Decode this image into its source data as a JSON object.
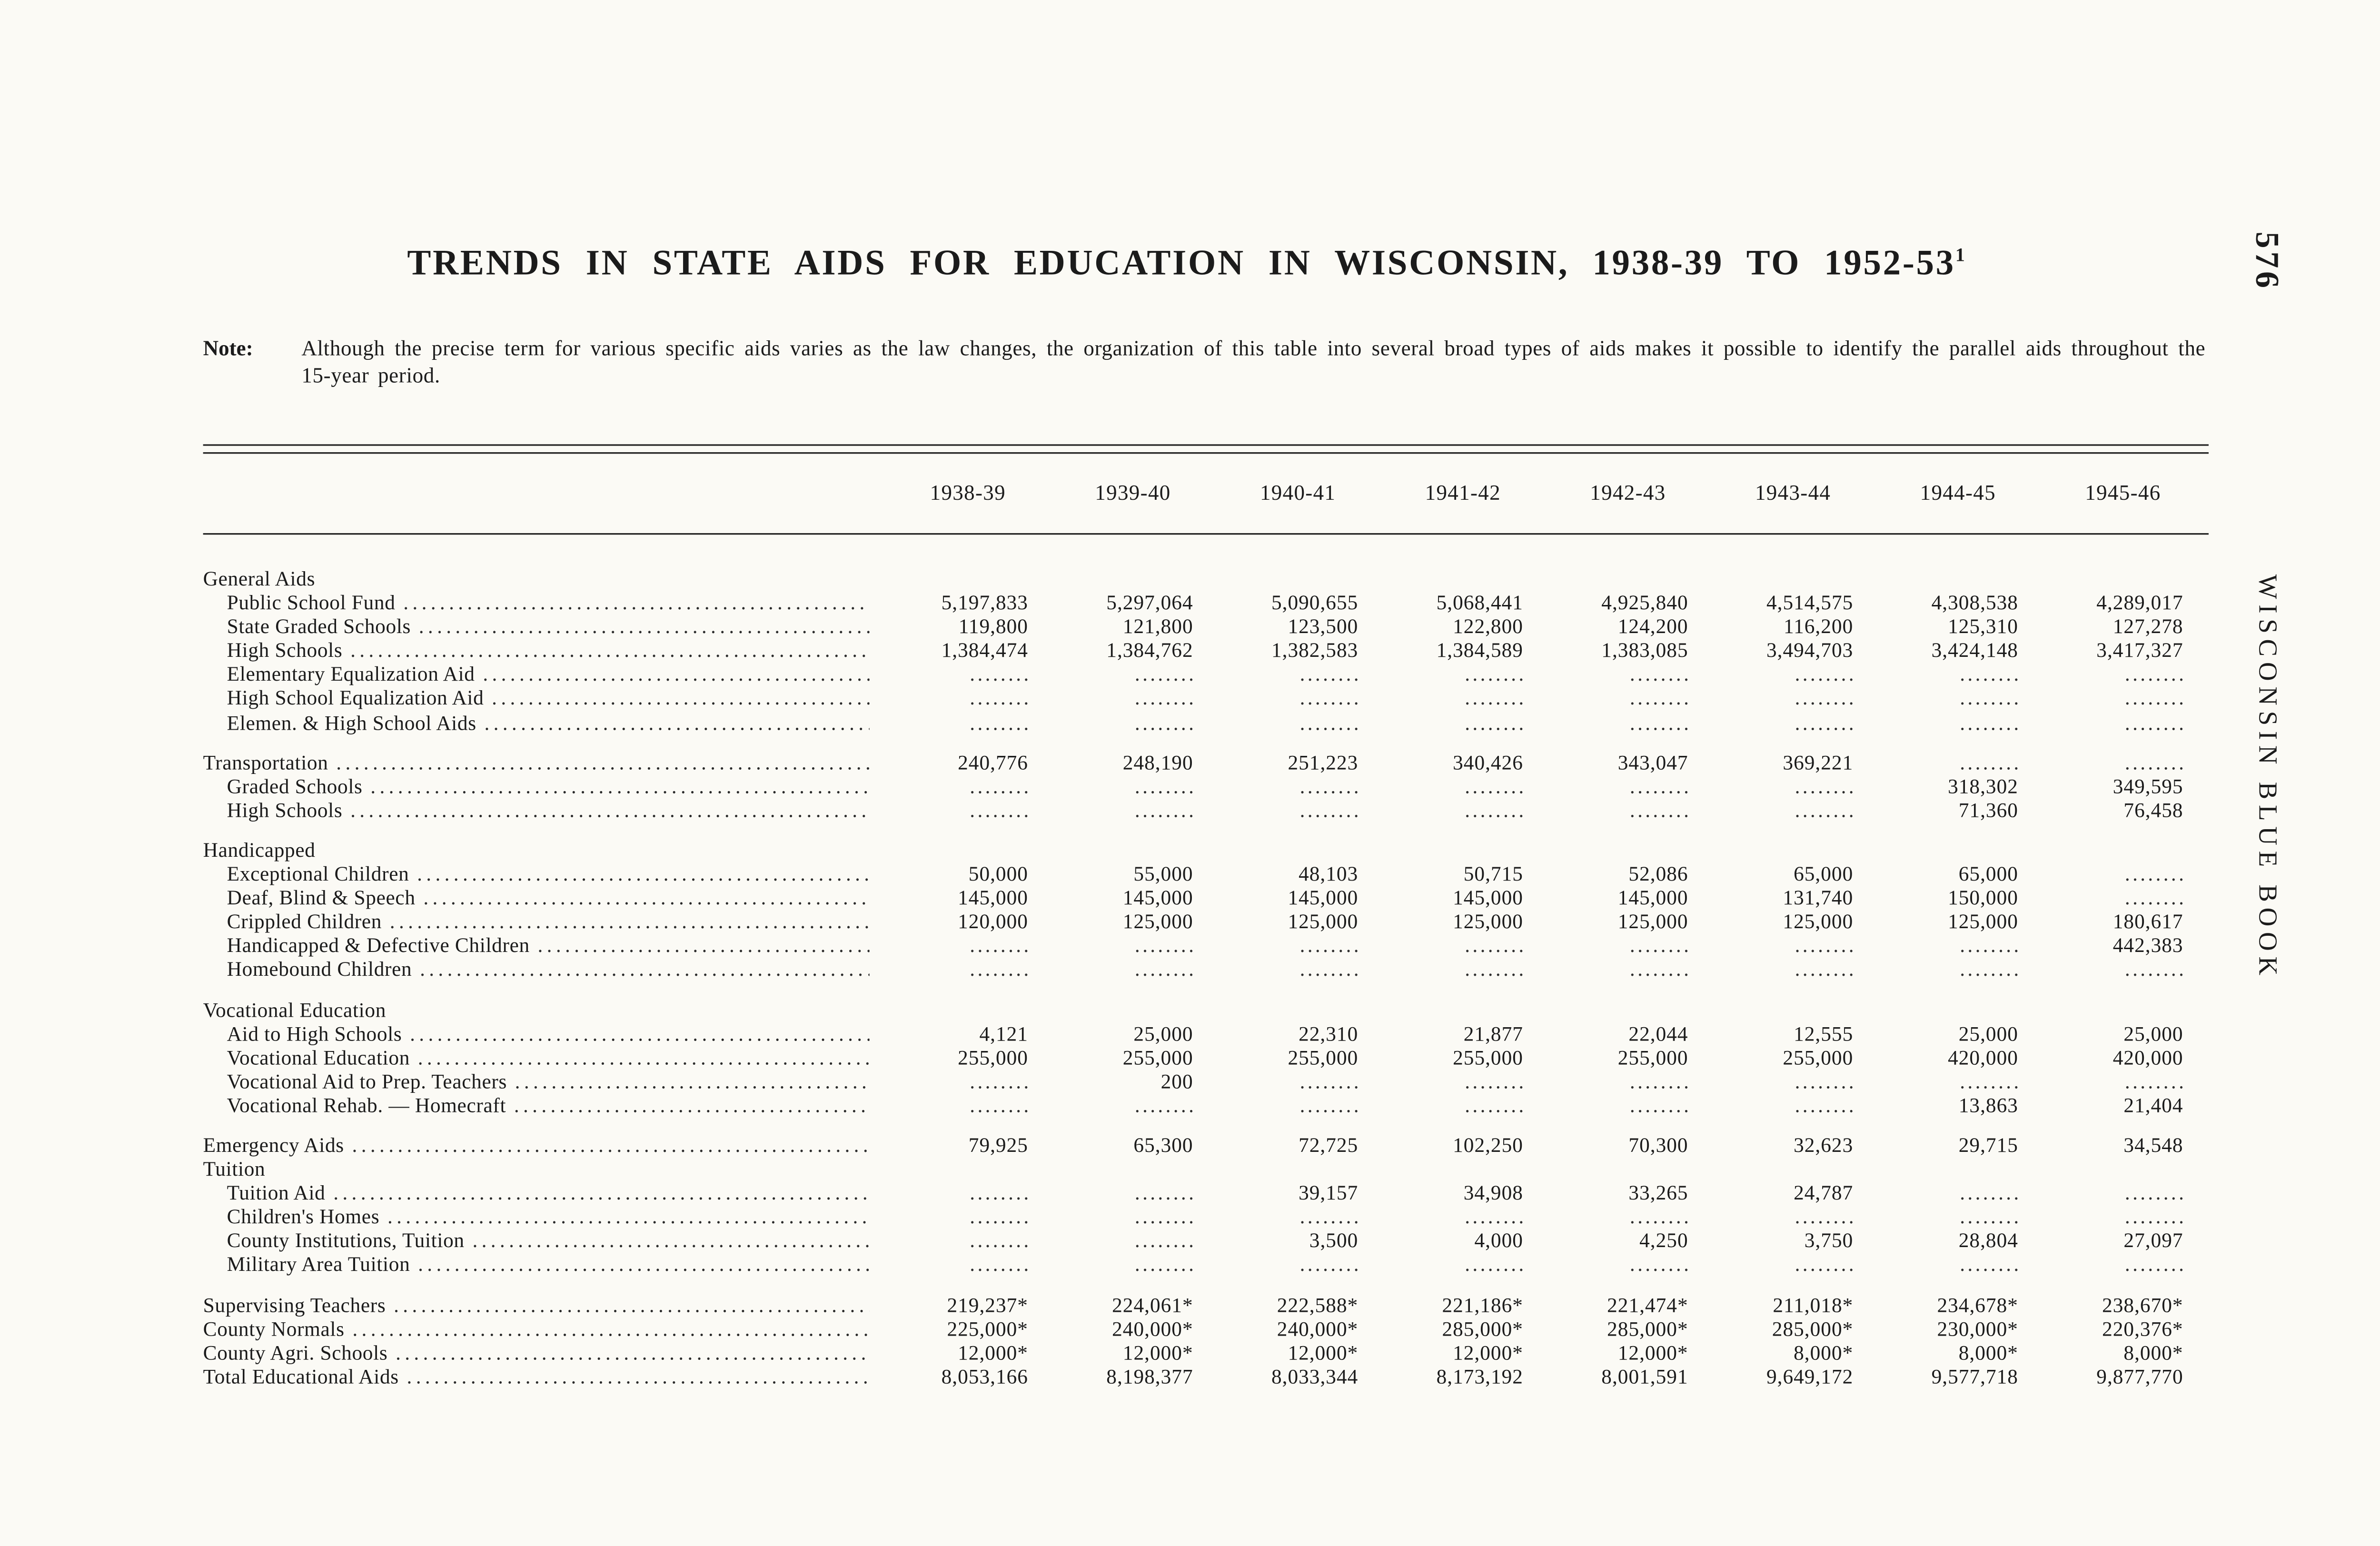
{
  "page": {
    "title": "TRENDS IN STATE AIDS FOR EDUCATION IN WISCONSIN, 1938-39 TO 1952-53",
    "title_superscript": "1",
    "page_number": "576",
    "sidebar_text": "WISCONSIN BLUE BOOK",
    "note_label": "Note:",
    "note_text": "Although the precise term for various specific aids varies as the law changes, the organization of this table into several broad types of aids makes it possible to identify the parallel aids throughout the 15-year period."
  },
  "table": {
    "columns": [
      "1938-39",
      "1939-40",
      "1940-41",
      "1941-42",
      "1942-43",
      "1943-44",
      "1944-45",
      "1945-46"
    ],
    "rows": [
      {
        "label": "General Aids",
        "style": "section",
        "leader": false,
        "gap": false
      },
      {
        "label": "Public School Fund",
        "style": "item",
        "leader": true,
        "gap": false,
        "values": [
          "5,197,833",
          "5,297,064",
          "5,090,655",
          "5,068,441",
          "4,925,840",
          "4,514,575",
          "4,308,538",
          "4,289,017"
        ]
      },
      {
        "label": "State Graded Schools",
        "style": "item",
        "leader": true,
        "gap": false,
        "values": [
          "119,800",
          "121,800",
          "123,500",
          "122,800",
          "124,200",
          "116,200",
          "125,310",
          "127,278"
        ]
      },
      {
        "label": "High Schools",
        "style": "item",
        "leader": true,
        "gap": false,
        "values": [
          "1,384,474",
          "1,384,762",
          "1,382,583",
          "1,384,589",
          "1,383,085",
          "3,494,703",
          "3,424,148",
          "3,417,327"
        ]
      },
      {
        "label": "Elementary Equalization Aid",
        "style": "item",
        "leader": true,
        "gap": false,
        "values": [
          "........",
          "........",
          "........",
          "........",
          "........",
          "........",
          "........",
          "........"
        ]
      },
      {
        "label": "High School Equalization Aid",
        "style": "item",
        "leader": true,
        "gap": false,
        "values": [
          "........",
          "........",
          "........",
          "........",
          "........",
          "........",
          "........",
          "........"
        ]
      },
      {
        "label": "Elemen. & High School Aids",
        "style": "item",
        "leader": true,
        "gap": false,
        "values": [
          "........",
          "........",
          "........",
          "........",
          "........",
          "........",
          "........",
          "........"
        ]
      },
      {
        "label": "Transportation",
        "style": "flush",
        "leader": true,
        "gap": true,
        "values": [
          "240,776",
          "248,190",
          "251,223",
          "340,426",
          "343,047",
          "369,221",
          "........",
          "........"
        ]
      },
      {
        "label": "Graded Schools",
        "style": "item",
        "leader": true,
        "gap": false,
        "values": [
          "........",
          "........",
          "........",
          "........",
          "........",
          "........",
          "318,302",
          "349,595"
        ]
      },
      {
        "label": "High Schools",
        "style": "item",
        "leader": true,
        "gap": false,
        "values": [
          "........",
          "........",
          "........",
          "........",
          "........",
          "........",
          "71,360",
          "76,458"
        ]
      },
      {
        "label": "Handicapped",
        "style": "section",
        "leader": false,
        "gap": true
      },
      {
        "label": "Exceptional Children",
        "style": "item",
        "leader": true,
        "gap": false,
        "values": [
          "50,000",
          "55,000",
          "48,103",
          "50,715",
          "52,086",
          "65,000",
          "65,000",
          "........"
        ]
      },
      {
        "label": "Deaf, Blind & Speech",
        "style": "item",
        "leader": true,
        "gap": false,
        "values": [
          "145,000",
          "145,000",
          "145,000",
          "145,000",
          "145,000",
          "131,740",
          "150,000",
          "........"
        ]
      },
      {
        "label": "Crippled Children",
        "style": "item",
        "leader": true,
        "gap": false,
        "values": [
          "120,000",
          "125,000",
          "125,000",
          "125,000",
          "125,000",
          "125,000",
          "125,000",
          "180,617"
        ]
      },
      {
        "label": "Handicapped & Defective Children",
        "style": "item",
        "leader": true,
        "gap": false,
        "values": [
          "........",
          "........",
          "........",
          "........",
          "........",
          "........",
          "........",
          "442,383"
        ]
      },
      {
        "label": "Homebound Children",
        "style": "item",
        "leader": true,
        "gap": false,
        "values": [
          "........",
          "........",
          "........",
          "........",
          "........",
          "........",
          "........",
          "........"
        ]
      },
      {
        "label": "Vocational Education",
        "style": "section",
        "leader": false,
        "gap": true
      },
      {
        "label": "Aid to High Schools",
        "style": "item",
        "leader": true,
        "gap": false,
        "values": [
          "4,121",
          "25,000",
          "22,310",
          "21,877",
          "22,044",
          "12,555",
          "25,000",
          "25,000"
        ]
      },
      {
        "label": "Vocational Education",
        "style": "item",
        "leader": true,
        "gap": false,
        "values": [
          "255,000",
          "255,000",
          "255,000",
          "255,000",
          "255,000",
          "255,000",
          "420,000",
          "420,000"
        ]
      },
      {
        "label": "Vocational Aid to Prep. Teachers",
        "style": "item",
        "leader": true,
        "gap": false,
        "values": [
          "........",
          "200",
          "........",
          "........",
          "........",
          "........",
          "........",
          "........"
        ]
      },
      {
        "label": "Vocational Rehab. — Homecraft",
        "style": "item",
        "leader": true,
        "gap": false,
        "values": [
          "........",
          "........",
          "........",
          "........",
          "........",
          "........",
          "13,863",
          "21,404"
        ]
      },
      {
        "label": "Emergency Aids",
        "style": "flush",
        "leader": true,
        "gap": true,
        "values": [
          "79,925",
          "65,300",
          "72,725",
          "102,250",
          "70,300",
          "32,623",
          "29,715",
          "34,548"
        ]
      },
      {
        "label": "Tuition",
        "style": "section",
        "leader": false,
        "gap": false
      },
      {
        "label": "Tuition Aid",
        "style": "item",
        "leader": true,
        "gap": false,
        "values": [
          "........",
          "........",
          "39,157",
          "34,908",
          "33,265",
          "24,787",
          "........",
          "........"
        ]
      },
      {
        "label": "Children's Homes",
        "style": "item",
        "leader": true,
        "gap": false,
        "values": [
          "........",
          "........",
          "........",
          "........",
          "........",
          "........",
          "........",
          "........"
        ]
      },
      {
        "label": "County Institutions, Tuition",
        "style": "item",
        "leader": true,
        "gap": false,
        "values": [
          "........",
          "........",
          "3,500",
          "4,000",
          "4,250",
          "3,750",
          "28,804",
          "27,097"
        ]
      },
      {
        "label": "Military Area Tuition",
        "style": "item",
        "leader": true,
        "gap": false,
        "values": [
          "........",
          "........",
          "........",
          "........",
          "........",
          "........",
          "........",
          "........"
        ]
      },
      {
        "label": "Supervising Teachers",
        "style": "flush",
        "leader": true,
        "gap": true,
        "values": [
          "219,237*",
          "224,061*",
          "222,588*",
          "221,186*",
          "221,474*",
          "211,018*",
          "234,678*",
          "238,670*"
        ]
      },
      {
        "label": "County Normals",
        "style": "flush",
        "leader": true,
        "gap": false,
        "values": [
          "225,000*",
          "240,000*",
          "240,000*",
          "285,000*",
          "285,000*",
          "285,000*",
          "230,000*",
          "220,376*"
        ]
      },
      {
        "label": "County Agri. Schools",
        "style": "flush",
        "leader": true,
        "gap": false,
        "values": [
          "12,000*",
          "12,000*",
          "12,000*",
          "12,000*",
          "12,000*",
          "8,000*",
          "8,000*",
          "8,000*"
        ]
      },
      {
        "label": "Total Educational Aids",
        "style": "flush",
        "leader": true,
        "gap": false,
        "values": [
          "8,053,166",
          "8,198,377",
          "8,033,344",
          "8,173,192",
          "8,001,591",
          "9,649,172",
          "9,577,718",
          "9,877,770"
        ]
      }
    ]
  }
}
